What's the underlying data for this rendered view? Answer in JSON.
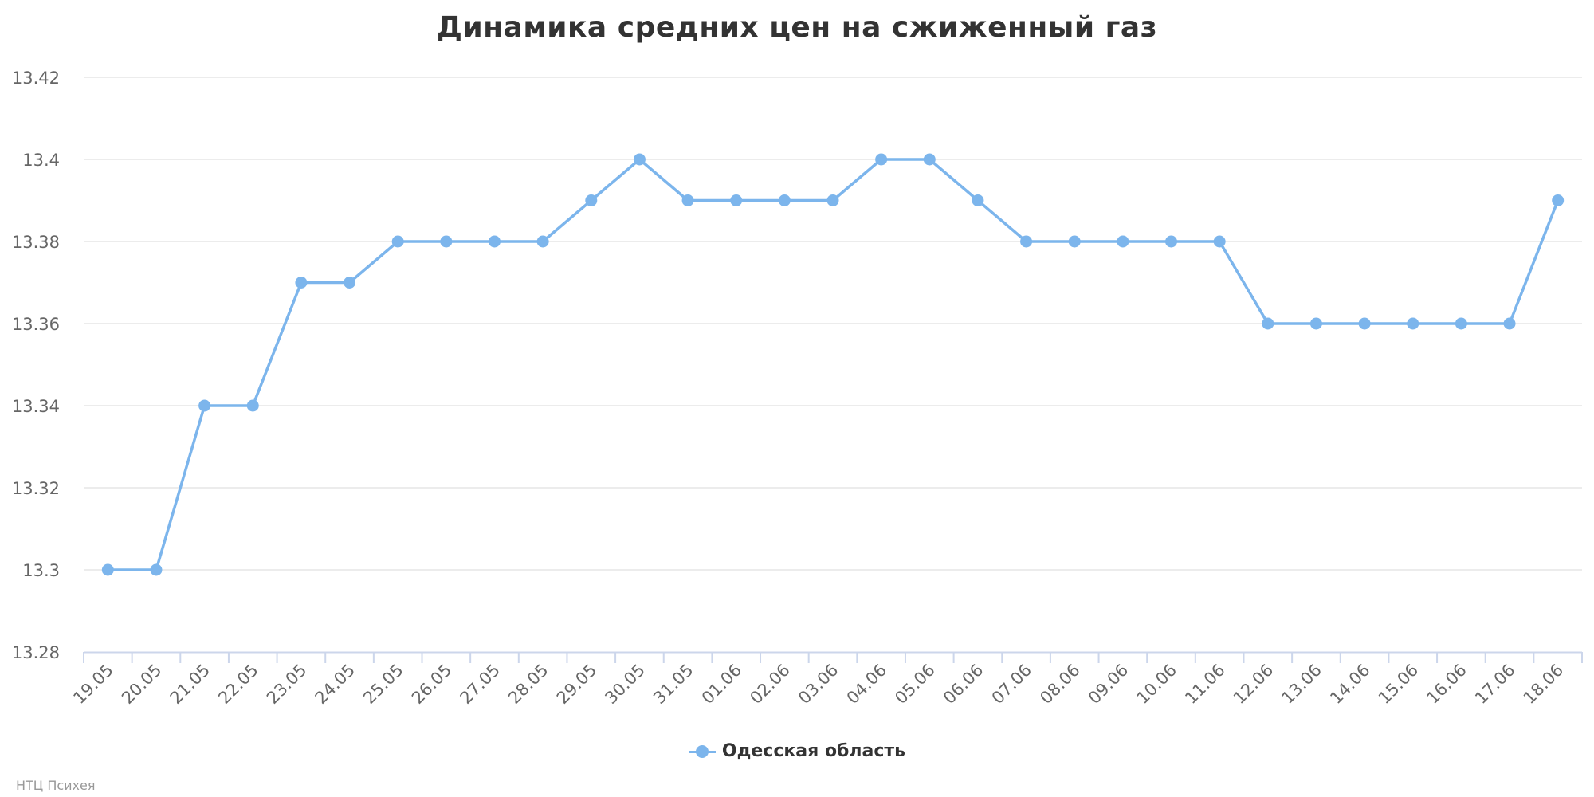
{
  "chart_data": {
    "type": "line",
    "title": "Динамика средних цен на сжиженный газ",
    "xlabel": "",
    "ylabel": "",
    "categories": [
      "19.05",
      "20.05",
      "21.05",
      "22.05",
      "23.05",
      "24.05",
      "25.05",
      "26.05",
      "27.05",
      "28.05",
      "29.05",
      "30.05",
      "31.05",
      "01.06",
      "02.06",
      "03.06",
      "04.06",
      "05.06",
      "06.06",
      "07.06",
      "08.06",
      "09.06",
      "10.06",
      "11.06",
      "12.06",
      "13.06",
      "14.06",
      "15.06",
      "16.06",
      "17.06",
      "18.06"
    ],
    "series": [
      {
        "name": "Одесская область",
        "color": "#7cb5ec",
        "values": [
          13.3,
          13.3,
          13.34,
          13.34,
          13.37,
          13.37,
          13.38,
          13.38,
          13.38,
          13.38,
          13.39,
          13.4,
          13.39,
          13.39,
          13.39,
          13.39,
          13.4,
          13.4,
          13.39,
          13.38,
          13.38,
          13.38,
          13.38,
          13.38,
          13.36,
          13.36,
          13.36,
          13.36,
          13.36,
          13.36,
          13.39
        ]
      }
    ],
    "ylim": [
      13.28,
      13.42
    ],
    "yticks": [
      "13.28",
      "13.3",
      "13.32",
      "13.34",
      "13.36",
      "13.38",
      "13.4",
      "13.42"
    ],
    "grid": true,
    "legend_position": "bottom-center",
    "gridline_color": "#e6e6e6",
    "axis_color": "#ccd6eb"
  },
  "credits": "НТЦ Психея"
}
